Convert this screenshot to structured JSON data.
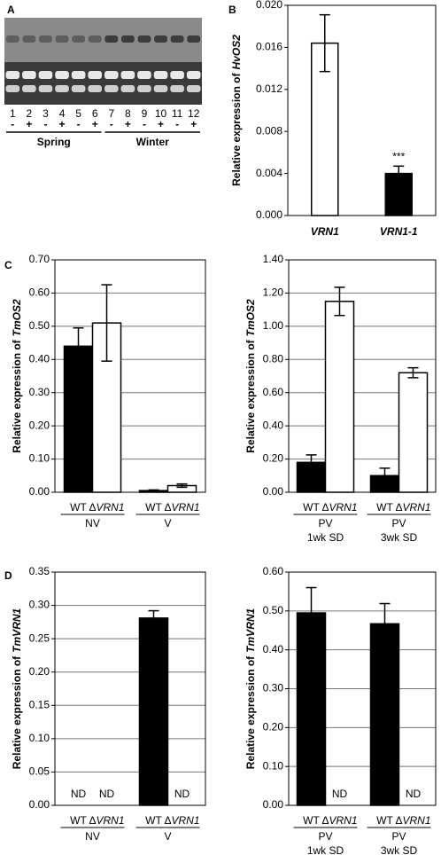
{
  "chart_data": [
    {
      "type": "gel",
      "panel": "A",
      "lanes": [
        "1",
        "2",
        "3",
        "4",
        "5",
        "6",
        "7",
        "8",
        "9",
        "10",
        "11",
        "12"
      ],
      "treatments": [
        "-",
        "+",
        "-",
        "+",
        "-",
        "+",
        "-",
        "+",
        "-",
        "+",
        "-",
        "+"
      ],
      "groups": [
        "Spring",
        "Winter"
      ]
    },
    {
      "type": "bar",
      "panel": "B",
      "ylabel": "Relative expression of",
      "ygene": "HvOS2",
      "categories": [
        "VRN1",
        "VRN1-1"
      ],
      "values": [
        0.0164,
        0.004
      ],
      "errors": [
        0.0027,
        0.0007
      ],
      "colors": [
        "#ffffff",
        "#000000"
      ],
      "annotation": "***",
      "ylim": [
        0,
        0.02
      ],
      "yticks": [
        {
          "value": 0,
          "label": "0.000"
        },
        {
          "value": 0.004,
          "label": "0.004"
        },
        {
          "value": 0.008,
          "label": "0.008"
        },
        {
          "value": 0.012,
          "label": "0.012"
        },
        {
          "value": 0.016,
          "label": "0.016"
        },
        {
          "value": 0.02,
          "label": "0.020"
        }
      ],
      "grid": false
    },
    {
      "type": "grouped_bar",
      "panel": "C",
      "ylabel": "Relative expression of",
      "ygene": "TmOS2",
      "categories": [
        "NV",
        "V"
      ],
      "series": [
        {
          "name": "WT",
          "color": "#000000",
          "values": [
            0.44,
            0.005
          ],
          "errors": [
            0.055,
            0.002
          ]
        },
        {
          "name": "ΔVRN1",
          "color": "#ffffff",
          "values": [
            0.51,
            0.02
          ],
          "errors": [
            0.115,
            0.005
          ]
        }
      ],
      "ylim": [
        0,
        0.7
      ],
      "yticks": [
        {
          "value": 0,
          "label": "0.00"
        },
        {
          "value": 0.1,
          "label": "0.10"
        },
        {
          "value": 0.2,
          "label": "0.20"
        },
        {
          "value": 0.3,
          "label": "0.30"
        },
        {
          "value": 0.4,
          "label": "0.40"
        },
        {
          "value": 0.5,
          "label": "0.50"
        },
        {
          "value": 0.6,
          "label": "0.60"
        },
        {
          "value": 0.7,
          "label": "0.70"
        }
      ],
      "grid": true
    },
    {
      "type": "grouped_bar",
      "ylabel": "Relative expression of",
      "ygene": "TmOS2",
      "categories": [
        "PV",
        "PV"
      ],
      "subcategories": [
        "1wk SD",
        "3wk SD"
      ],
      "series": [
        {
          "name": "WT",
          "color": "#000000",
          "values": [
            0.18,
            0.1
          ],
          "errors": [
            0.045,
            0.045
          ]
        },
        {
          "name": "ΔVRN1",
          "color": "#ffffff",
          "values": [
            1.15,
            0.72
          ],
          "errors": [
            0.085,
            0.03
          ]
        }
      ],
      "ylim": [
        0,
        1.4
      ],
      "yticks": [
        {
          "value": 0,
          "label": "0.00"
        },
        {
          "value": 0.2,
          "label": "0.20"
        },
        {
          "value": 0.4,
          "label": "0.40"
        },
        {
          "value": 0.6,
          "label": "0.60"
        },
        {
          "value": 0.8,
          "label": "0.80"
        },
        {
          "value": 1,
          "label": "1.00"
        },
        {
          "value": 1.2,
          "label": "1.20"
        },
        {
          "value": 1.4,
          "label": "1.40"
        }
      ],
      "grid": true
    },
    {
      "type": "grouped_bar",
      "panel": "D",
      "ylabel": "Relative expression of",
      "ygene": "TmVRN1",
      "categories": [
        "NV",
        "V"
      ],
      "missing_label": "ND",
      "series": [
        {
          "name": "WT",
          "color": "#000000",
          "values": [
            null,
            0.281
          ],
          "errors": [
            null,
            0.011
          ]
        },
        {
          "name": "ΔVRN1",
          "color": "#ffffff",
          "values": [
            null,
            null
          ],
          "errors": [
            null,
            null
          ]
        }
      ],
      "ylim": [
        0,
        0.35
      ],
      "yticks": [
        {
          "value": 0,
          "label": "0.00"
        },
        {
          "value": 0.05,
          "label": "0.05"
        },
        {
          "value": 0.1,
          "label": "0.10"
        },
        {
          "value": 0.15,
          "label": "0.15"
        },
        {
          "value": 0.2,
          "label": "0.20"
        },
        {
          "value": 0.25,
          "label": "0.25"
        },
        {
          "value": 0.3,
          "label": "0.30"
        },
        {
          "value": 0.35,
          "label": "0.35"
        }
      ],
      "grid": true
    },
    {
      "type": "grouped_bar",
      "ylabel": "Relative expression of",
      "ygene": "TmVRN1",
      "categories": [
        "PV",
        "PV"
      ],
      "subcategories": [
        "1wk SD",
        "3wk SD"
      ],
      "missing_label": "ND",
      "series": [
        {
          "name": "WT",
          "color": "#000000",
          "values": [
            0.495,
            0.467
          ],
          "errors": [
            0.065,
            0.052
          ]
        },
        {
          "name": "ΔVRN1",
          "color": "#ffffff",
          "values": [
            null,
            null
          ],
          "errors": [
            null,
            null
          ]
        }
      ],
      "ylim": [
        0,
        0.6
      ],
      "yticks": [
        {
          "value": 0,
          "label": "0.00"
        },
        {
          "value": 0.1,
          "label": "0.10"
        },
        {
          "value": 0.2,
          "label": "0.20"
        },
        {
          "value": 0.3,
          "label": "0.30"
        },
        {
          "value": 0.4,
          "label": "0.40"
        },
        {
          "value": 0.5,
          "label": "0.50"
        },
        {
          "value": 0.6,
          "label": "0.60"
        }
      ],
      "grid": true
    }
  ]
}
